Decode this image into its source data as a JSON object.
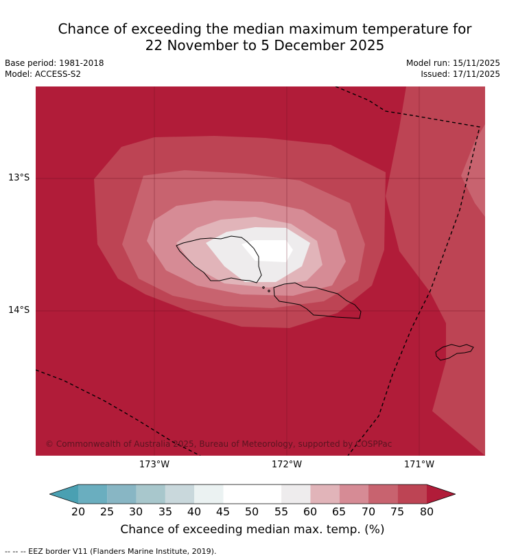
{
  "title_line1": "Chance of exceeding the median maximum temperature for",
  "title_line2": "22 November to 5 December 2025",
  "base_period": "Base period: 1981-2018",
  "model": "Model: ACCESS-S2",
  "model_run": "Model run: 15/11/2025",
  "issued": "Issued: 17/11/2025",
  "lat_labels": [
    "13°S",
    "14°S"
  ],
  "lon_labels": [
    "173°W",
    "172°W",
    "171°W"
  ],
  "copyright": "© Commonwealth of Australia 2025, Bureau of Meteorology, supported by COSPPac",
  "colorbar": {
    "ticks": [
      "20",
      "25",
      "30",
      "35",
      "40",
      "45",
      "50",
      "55",
      "60",
      "65",
      "70",
      "75",
      "80"
    ],
    "label": "Chance of exceeding median max. temp. (%)",
    "colors": {
      "below_20": "#4aa0b2",
      "c20_25": "#6aaebf",
      "c25_30": "#88b6c4",
      "c30_35": "#a8c7cc",
      "c35_40": "#c9d8dc",
      "c40_45": "#ebf2f2",
      "c45_50": "#ffffff",
      "c50_55": "#ffffff",
      "c55_60": "#eeeced",
      "c60_65": "#e1b4b9",
      "c65_70": "#d68b95",
      "c70_75": "#c8636f",
      "c75_80": "#bd4454",
      "above_80": "#b11c39"
    }
  },
  "footnote": "--  --  -- EEZ border V11 (Flanders Marine Institute, 2019)."
}
